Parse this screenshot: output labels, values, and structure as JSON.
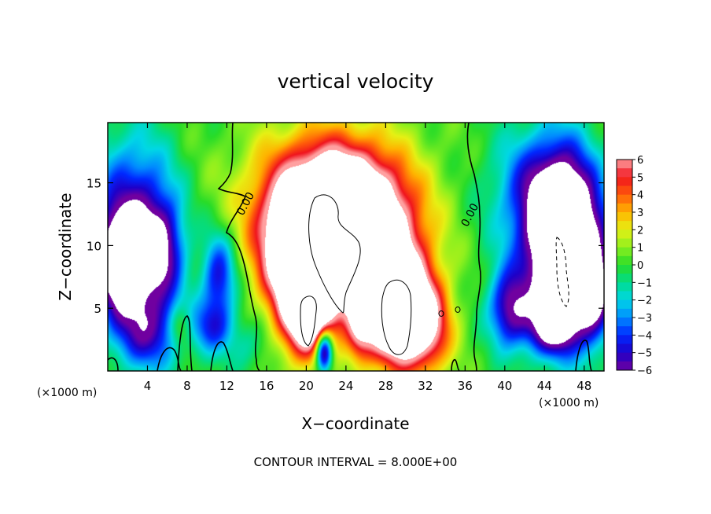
{
  "chart_data": {
    "type": "heatmap",
    "title": "vertical velocity",
    "xlabel": "X−coordinate",
    "ylabel": "Z−coordinate",
    "x_unit_label": "(×1000 m)",
    "y_unit_label": "(×1000 m)",
    "xlim": [
      0,
      50
    ],
    "ylim": [
      0,
      19.8
    ],
    "x_ticks": [
      4,
      8,
      12,
      16,
      20,
      24,
      28,
      32,
      36,
      40,
      44,
      48
    ],
    "x_tick_labels": [
      "4",
      "8",
      "12",
      "16",
      "20",
      "24",
      "28",
      "32",
      "36",
      "40",
      "44",
      "48"
    ],
    "y_ticks": [
      5,
      10,
      15
    ],
    "y_tick_labels": [
      "5",
      "10",
      "15"
    ],
    "colorbar": {
      "min": -6,
      "max": 6,
      "ticks": [
        6,
        5,
        4,
        3,
        2,
        1,
        0,
        -1,
        -2,
        -3,
        -4,
        -5,
        -6
      ],
      "tick_labels": [
        "6",
        "5",
        "4",
        "3",
        "2",
        "1",
        "0",
        "−1",
        "−2",
        "−3",
        "−4",
        "−5",
        "−6"
      ]
    },
    "contour_labels": [
      {
        "text": "0.00",
        "x": 14.2,
        "z": 13.2
      },
      {
        "text": "0.00",
        "x": 36.8,
        "z": 12.3
      }
    ],
    "contour_interval_text": "CONTOUR INTERVAL = 8.000E+00",
    "field_features": {
      "background": 0.2,
      "updraft_core": [
        {
          "x": 23.0,
          "z": 11.5,
          "sx": 4.4,
          "sz": 3.6,
          "amp": 13.0
        },
        {
          "x": 29.5,
          "z": 4.5,
          "sx": 2.4,
          "sz": 2.8,
          "amp": 12.0
        },
        {
          "x": 20.2,
          "z": 4.8,
          "sx": 1.8,
          "sz": 2.6,
          "amp": 10.0
        },
        {
          "x": 22.5,
          "z": 14.5,
          "sx": 5.5,
          "sz": 3.6,
          "amp": 4.0
        },
        {
          "x": 18.6,
          "z": 8.4,
          "sx": 2.2,
          "sz": 3.0,
          "amp": 5.5
        },
        {
          "x": 26.5,
          "z": 8.5,
          "sx": 3.5,
          "sz": 3.2,
          "amp": 5.0
        },
        {
          "x": 32.5,
          "z": 3.0,
          "sx": 1.6,
          "sz": 2.4,
          "amp": 3.0
        },
        {
          "x": 7.3,
          "z": 3.5,
          "sx": 0.8,
          "sz": 1.2,
          "amp": 2.5
        },
        {
          "x": 25.3,
          "z": 3.0,
          "sx": 0.9,
          "sz": 1.8,
          "amp": 3.5
        }
      ],
      "downdraft": [
        {
          "x": 1.5,
          "z": 8.5,
          "sx": 2.0,
          "sz": 2.8,
          "amp": -10.0
        },
        {
          "x": 2.5,
          "z": 13.5,
          "sx": 2.8,
          "sz": 4.0,
          "amp": -4.5
        },
        {
          "x": 5.5,
          "z": 9.5,
          "sx": 1.6,
          "sz": 3.0,
          "amp": -5.5
        },
        {
          "x": 4.0,
          "z": 3.0,
          "sx": 2.5,
          "sz": 2.2,
          "amp": -5.0
        },
        {
          "x": 11.2,
          "z": 7.5,
          "sx": 1.2,
          "sz": 2.4,
          "amp": -5.0
        },
        {
          "x": 10.5,
          "z": 3.5,
          "sx": 1.5,
          "sz": 1.5,
          "amp": -3.5
        },
        {
          "x": 46.0,
          "z": 9.5,
          "sx": 2.4,
          "sz": 4.4,
          "amp": -13.0
        },
        {
          "x": 44.0,
          "z": 14.0,
          "sx": 3.5,
          "sz": 3.6,
          "amp": -5.0
        },
        {
          "x": 40.5,
          "z": 5.0,
          "sx": 1.5,
          "sz": 2.2,
          "amp": -6.0
        },
        {
          "x": 44.8,
          "z": 3.5,
          "sx": 1.8,
          "sz": 1.5,
          "amp": -5.5
        },
        {
          "x": 49.0,
          "z": 6.5,
          "sx": 1.2,
          "sz": 2.8,
          "amp": -6.0
        },
        {
          "x": 21.8,
          "z": 1.6,
          "sx": 0.6,
          "sz": 1.2,
          "amp": -9.0
        },
        {
          "x": 14.0,
          "z": 2.0,
          "sx": 1.5,
          "sz": 1.5,
          "amp": -1.5
        }
      ]
    }
  }
}
